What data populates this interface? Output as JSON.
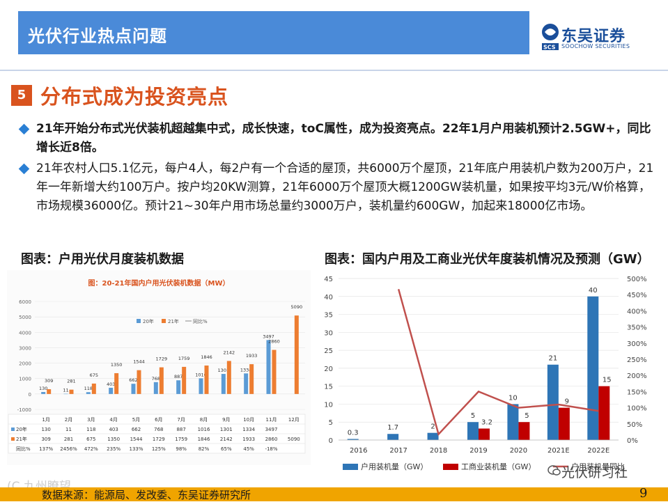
{
  "header": {
    "title": "光伏行业热点问题",
    "logo_cn": "东吴证券",
    "logo_en": "SOOCHOW SECURITIES"
  },
  "section": {
    "badge": "5",
    "title": "分布式成为投资亮点"
  },
  "bullets": [
    "21年开始分布式光伏装机超越集中式，成长快速，toC属性，成为投资亮点。22年1月户用装机预计2.5GW+，同比增长近8倍。",
    "21年农村人口5.1亿元，每户4人，每2户有一个合适的屋顶，共6000万个屋顶，21年底户用装机户数为200万户，21年一年新增大约100万户。按户均20KW测算，21年6000万个屋顶大概1200GW装机量，如果按平均3元/W价格算，市场规模36000亿。预计21~30年户用市场总量约3000万户，装机量约600GW，加起来18000亿市场。"
  ],
  "captions": {
    "left": "图表：户用光伏月度装机数据",
    "right": "图表：国内户用及工商业光伏年度装机情况及预测（GW）"
  },
  "chart_data": [
    {
      "type": "bar",
      "title": "图：20-21年国内户用光伏装机数据（MW）",
      "categories": [
        "1月",
        "2月",
        "3月",
        "4月",
        "5月",
        "6月",
        "7月",
        "8月",
        "9月",
        "10月",
        "11月",
        "12月"
      ],
      "series": [
        {
          "name": "20年",
          "values": [
            130,
            11,
            118,
            403,
            662,
            768,
            887,
            1016,
            1301,
            1334,
            3497,
            null
          ],
          "color": "#5b9bd5"
        },
        {
          "name": "21年",
          "values": [
            309,
            281,
            675,
            1350,
            1544,
            1729,
            1759,
            1846,
            2142,
            1933,
            2860,
            5090
          ],
          "color": "#ed7d31"
        },
        {
          "name": "同比%",
          "values": [
            "137%",
            "2456%",
            "472%",
            "235%",
            "133%",
            "125%",
            "98%",
            "82%",
            "65%",
            "45%",
            "-18%",
            ""
          ]
        }
      ],
      "yticks": [
        -1000,
        0,
        1000,
        2000,
        3000,
        4000,
        5000,
        6000
      ],
      "ylim": [
        -1000,
        6000
      ],
      "table_row_labels": [
        "20年",
        "21年",
        "同比%"
      ]
    },
    {
      "type": "bar",
      "categories": [
        "2016",
        "2017",
        "2018",
        "2019",
        "2020",
        "2021E",
        "2022E"
      ],
      "series": [
        {
          "name": "户用装机量（GW）",
          "values": [
            0.3,
            1.7,
            2,
            5,
            10,
            21,
            40
          ],
          "color": "#2e75b6"
        },
        {
          "name": "工商业装机量（GW）",
          "values": [
            null,
            null,
            null,
            3.2,
            5,
            9,
            15
          ],
          "color": "#c00000"
        },
        {
          "name": "户用装机量同比",
          "values": [
            null,
            4.67,
            0.18,
            1.5,
            1.0,
            1.1,
            0.9
          ],
          "color": "#c0504d",
          "axis": "right"
        }
      ],
      "data_labels_left": [
        "0.3",
        "1.7",
        "2",
        "5",
        "10",
        "21",
        "40"
      ],
      "data_labels_right": [
        "",
        "",
        "",
        "3.2",
        "5",
        "9",
        "15"
      ],
      "yticks_left": [
        0,
        5,
        10,
        15,
        20,
        25,
        30,
        35,
        40,
        45
      ],
      "yticks_right": [
        "0%",
        "50%",
        "100%",
        "150%",
        "200%",
        "250%",
        "300%",
        "350%",
        "400%",
        "450%",
        "500%"
      ],
      "ylim": [
        0,
        45
      ],
      "y2lim": [
        0,
        5
      ],
      "legend_position": "bottom"
    }
  ],
  "footer": {
    "source": "数据来源：能源局、发改委、东吴证券研究所",
    "page": "9",
    "watermark": "光伏研习社",
    "watermark_left": "(C 九州瞭望"
  }
}
